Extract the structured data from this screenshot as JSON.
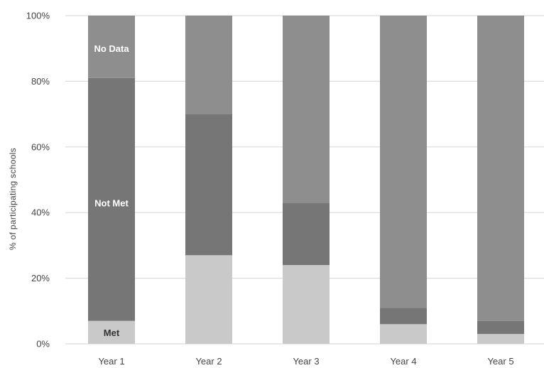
{
  "chart_data": {
    "type": "bar",
    "stacked": true,
    "categories": [
      "Year 1",
      "Year 2",
      "Year 3",
      "Year 4",
      "Year 5"
    ],
    "series": [
      {
        "name": "Met",
        "color": "#c9c9c9",
        "values": [
          7,
          27,
          24,
          6,
          3
        ]
      },
      {
        "name": "Not Met",
        "color": "#767676",
        "values": [
          74,
          43,
          19,
          5,
          4
        ]
      },
      {
        "name": "No Data",
        "color": "#8e8e8e",
        "values": [
          19,
          30,
          57,
          89,
          93
        ]
      }
    ],
    "ylabel": "% of participating schools",
    "ylim": [
      0,
      100
    ],
    "yticks": [
      "0%",
      "20%",
      "40%",
      "60%",
      "80%",
      "100%"
    ],
    "grid": true,
    "segment_labels": [
      {
        "series": "Met",
        "category": "Year 1",
        "text": "Met",
        "color": "#333333",
        "value": 3.5
      },
      {
        "series": "Not Met",
        "category": "Year 1",
        "text": "Not Met",
        "color": "#ffffff",
        "value": 43
      },
      {
        "series": "No Data",
        "category": "Year 1",
        "text": "No Data",
        "color": "#ffffff",
        "value": 90
      }
    ]
  }
}
